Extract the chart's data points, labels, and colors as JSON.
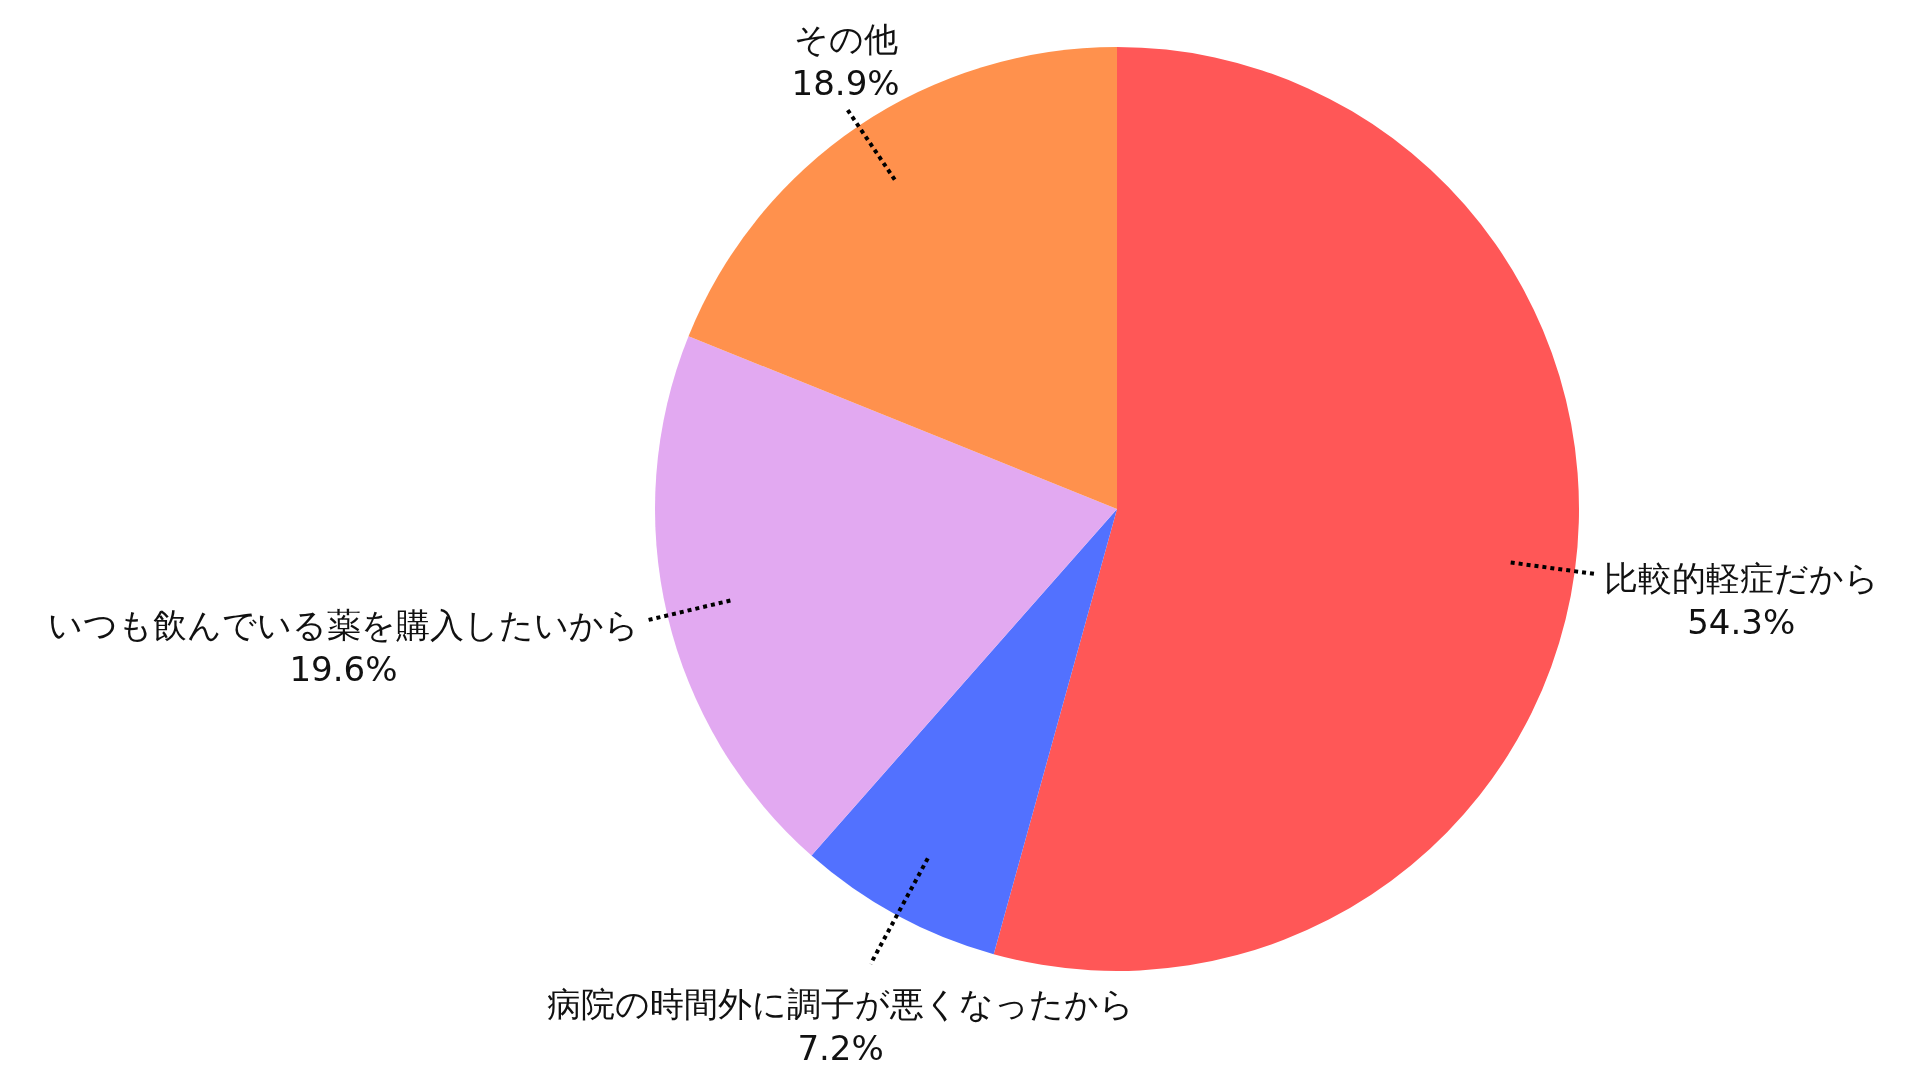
{
  "chart_data": {
    "type": "pie",
    "categories": [
      "比較的軽症だから",
      "病院の時間外に調子が悪くなったから",
      "いつも飲んでいる薬を購入したいから",
      "その他"
    ],
    "values": [
      54.3,
      7.2,
      19.6,
      18.9
    ],
    "colors": [
      "#ff5757",
      "#5271ff",
      "#e2a9f1",
      "#ff914d"
    ],
    "value_labels": [
      "54.3%",
      "7.2%",
      "19.6%",
      "18.9%"
    ]
  }
}
